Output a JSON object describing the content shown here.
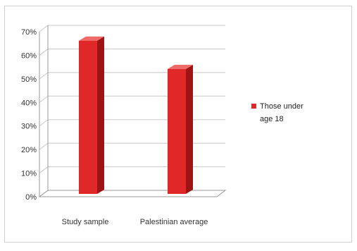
{
  "chart_data": {
    "type": "bar",
    "style": "3d",
    "categories": [
      "Study sample",
      "Palestinian average"
    ],
    "series": [
      {
        "name": "Those under age 18",
        "values": [
          0.65,
          0.53
        ]
      }
    ],
    "yticks": [
      "0%",
      "10%",
      "20%",
      "30%",
      "40%",
      "50%",
      "60%",
      "70%"
    ],
    "ylim": [
      0,
      0.7
    ],
    "grid": true,
    "legend": "right",
    "colors": {
      "bar_front": "#e02828",
      "bar_side": "#9e1414",
      "bar_top": "#f06a6a",
      "grid": "#c8c8c8"
    }
  },
  "legend": {
    "line1": "Those under",
    "line2": "age 18"
  }
}
